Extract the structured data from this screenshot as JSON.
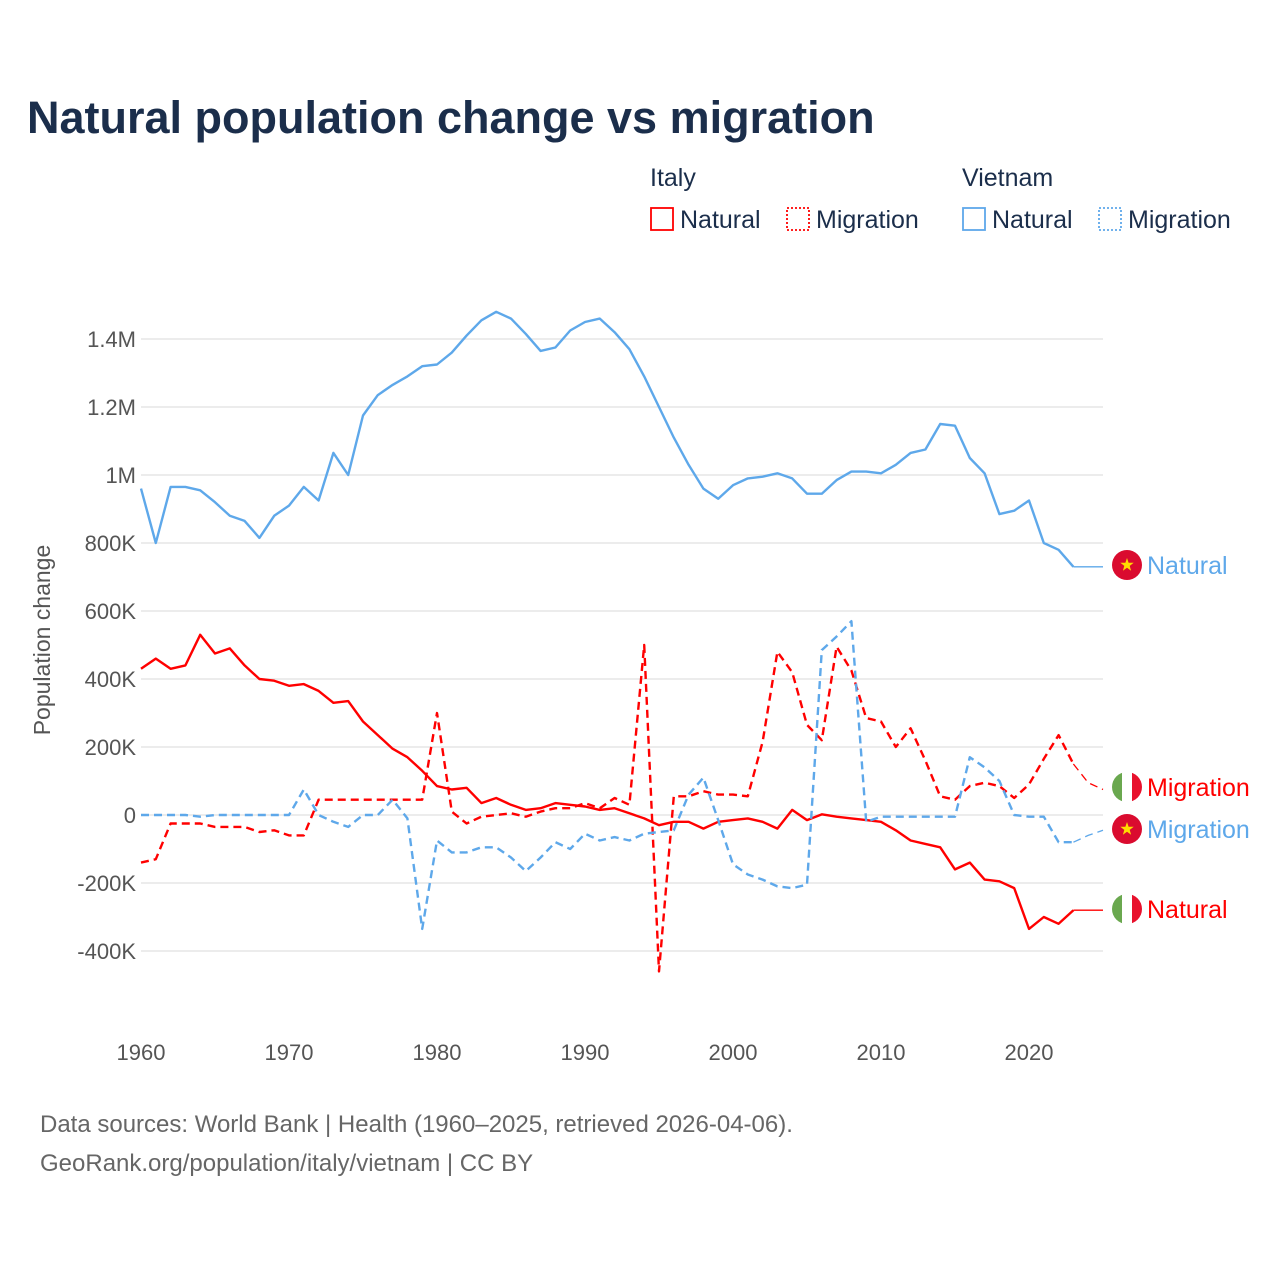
{
  "chart_data": {
    "type": "line",
    "title": "Natural population change vs migration",
    "ylabel": "Population change",
    "xlabel": "",
    "ylim": [
      -500000,
      1500000
    ],
    "xlim": [
      1960,
      2025
    ],
    "grid": true,
    "legend_placement": "top-right",
    "x_ticks": [
      1960,
      1970,
      1980,
      1990,
      2000,
      2010,
      2020
    ],
    "x_tick_labels": [
      "1960",
      "1970",
      "1980",
      "1990",
      "2000",
      "2010",
      "2020"
    ],
    "y_ticks": [
      -400000,
      -200000,
      0,
      200000,
      400000,
      600000,
      800000,
      1000000,
      1200000,
      1400000
    ],
    "y_tick_labels": [
      "-400K",
      "-200K",
      "0",
      "200K",
      "400K",
      "600K",
      "800K",
      "1M",
      "1.2M",
      "1.4M"
    ],
    "legend": {
      "groups": [
        {
          "country": "Italy",
          "items": [
            "Natural",
            "Migration"
          ]
        },
        {
          "country": "Vietnam",
          "items": [
            "Natural",
            "Migration"
          ]
        }
      ]
    },
    "x": [
      1960,
      1961,
      1962,
      1963,
      1964,
      1965,
      1966,
      1967,
      1968,
      1969,
      1970,
      1971,
      1972,
      1973,
      1974,
      1975,
      1976,
      1977,
      1978,
      1979,
      1980,
      1981,
      1982,
      1983,
      1984,
      1985,
      1986,
      1987,
      1988,
      1989,
      1990,
      1991,
      1992,
      1993,
      1994,
      1995,
      1996,
      1997,
      1998,
      1999,
      2000,
      2001,
      2002,
      2003,
      2004,
      2005,
      2006,
      2007,
      2008,
      2009,
      2010,
      2011,
      2012,
      2013,
      2014,
      2015,
      2016,
      2017,
      2018,
      2019,
      2020,
      2021,
      2022,
      2023,
      2024,
      2025
    ],
    "series": [
      {
        "name": "Natural",
        "country": "Italy",
        "color": "#ff0000",
        "dash": "solid",
        "end_label": "Natural",
        "values": [
          430000,
          460000,
          430000,
          440000,
          530000,
          475000,
          490000,
          440000,
          400000,
          395000,
          380000,
          385000,
          365000,
          330000,
          335000,
          275000,
          235000,
          195000,
          170000,
          130000,
          85000,
          75000,
          80000,
          35000,
          50000,
          30000,
          15000,
          20000,
          35000,
          30000,
          25000,
          15000,
          20000,
          5000,
          -10000,
          -30000,
          -20000,
          -20000,
          -40000,
          -20000,
          -15000,
          -10000,
          -20000,
          -40000,
          15000,
          -15000,
          2000,
          -5000,
          -10000,
          -15000,
          -20000,
          -45000,
          -75000,
          -85000,
          -95000,
          -160000,
          -140000,
          -190000,
          -195000,
          -215000,
          -335000,
          -300000,
          -320000,
          -280000,
          -280000,
          -280000
        ]
      },
      {
        "name": "Migration",
        "country": "Italy",
        "color": "#ff0000",
        "dash": "dashed",
        "end_label": "Migration",
        "values": [
          -140000,
          -130000,
          -25000,
          -25000,
          -25000,
          -35000,
          -35000,
          -35000,
          -50000,
          -45000,
          -60000,
          -60000,
          45000,
          45000,
          45000,
          45000,
          45000,
          45000,
          45000,
          45000,
          300000,
          10000,
          -25000,
          -5000,
          0,
          5000,
          -5000,
          10000,
          20000,
          20000,
          35000,
          20000,
          50000,
          30000,
          500000,
          -460000,
          55000,
          55000,
          70000,
          60000,
          60000,
          55000,
          215000,
          480000,
          420000,
          265000,
          220000,
          495000,
          425000,
          285000,
          275000,
          200000,
          255000,
          160000,
          55000,
          45000,
          85000,
          95000,
          85000,
          50000,
          90000,
          165000,
          235000,
          150000,
          95000,
          75000
        ]
      },
      {
        "name": "Natural",
        "country": "Vietnam",
        "color": "#5ea8ea",
        "dash": "solid",
        "end_label": "Natural",
        "values": [
          960000,
          800000,
          965000,
          965000,
          955000,
          920000,
          880000,
          865000,
          815000,
          880000,
          910000,
          965000,
          925000,
          1065000,
          1000000,
          1175000,
          1235000,
          1265000,
          1290000,
          1320000,
          1325000,
          1360000,
          1410000,
          1455000,
          1480000,
          1460000,
          1415000,
          1365000,
          1375000,
          1425000,
          1450000,
          1460000,
          1420000,
          1370000,
          1290000,
          1200000,
          1110000,
          1030000,
          960000,
          930000,
          970000,
          990000,
          995000,
          1005000,
          990000,
          945000,
          945000,
          985000,
          1010000,
          1010000,
          1005000,
          1030000,
          1065000,
          1075000,
          1150000,
          1145000,
          1050000,
          1005000,
          885000,
          895000,
          925000,
          800000,
          780000,
          730000,
          730000,
          730000
        ]
      },
      {
        "name": "Migration",
        "country": "Vietnam",
        "color": "#5ea8ea",
        "dash": "dashed",
        "end_label": "Migration",
        "values": [
          0,
          0,
          0,
          0,
          -5000,
          0,
          0,
          0,
          0,
          0,
          0,
          75000,
          0,
          -20000,
          -35000,
          0,
          0,
          45000,
          -10000,
          -335000,
          -75000,
          -110000,
          -110000,
          -95000,
          -95000,
          -125000,
          -165000,
          -125000,
          -80000,
          -100000,
          -55000,
          -75000,
          -65000,
          -75000,
          -55000,
          -50000,
          -45000,
          60000,
          110000,
          -15000,
          -145000,
          -175000,
          -190000,
          -210000,
          -215000,
          -205000,
          485000,
          525000,
          570000,
          -20000,
          -5000,
          -5000,
          -5000,
          -5000,
          -5000,
          -5000,
          170000,
          140000,
          100000,
          0,
          -5000,
          -5000,
          -80000,
          -80000,
          -60000,
          -45000
        ]
      }
    ]
  },
  "footer": {
    "source_line": "Data sources: World Bank | Health (1960–2025, retrieved 2026-04-06).",
    "credit_line": "GeoRank.org/population/italy/vietnam | CC BY"
  },
  "flags": {
    "italy": [
      "#6aa84f",
      "#ffffff",
      "#e8112d"
    ],
    "vietnam": {
      "bg": "#da0b2f",
      "star": "#ffdd00"
    }
  }
}
